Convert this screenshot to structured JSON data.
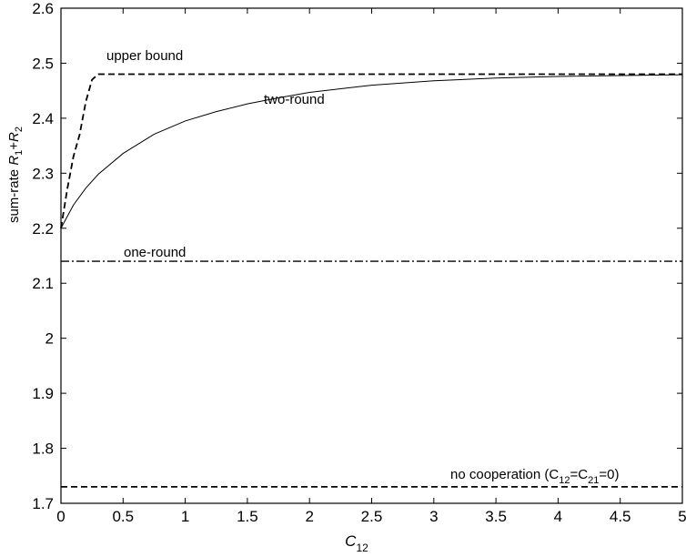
{
  "chart_data": {
    "type": "line",
    "xlabel": {
      "base": "C",
      "sub": "12"
    },
    "ylabel": {
      "prefix": "sum-rate ",
      "r1": "R",
      "r1_sub": "1",
      "plus": "+",
      "r2": "R",
      "r2_sub": "2"
    },
    "xlim": [
      0,
      5
    ],
    "ylim": [
      1.7,
      2.6
    ],
    "grid": false,
    "x_ticks": [
      "0",
      "0.5",
      "1",
      "1.5",
      "2",
      "2.5",
      "3",
      "3.5",
      "4",
      "4.5",
      "5"
    ],
    "y_ticks": [
      "1.7",
      "1.8",
      "1.9",
      "2",
      "2.1",
      "2.2",
      "2.3",
      "2.4",
      "2.5",
      "2.6"
    ],
    "series": [
      {
        "key": "upper",
        "style": "dashed",
        "x": [
          0,
          0.05,
          0.1,
          0.15,
          0.2,
          0.25,
          0.3,
          5
        ],
        "y": [
          2.2,
          2.27,
          2.33,
          2.37,
          2.43,
          2.47,
          2.48,
          2.48
        ]
      },
      {
        "key": "two",
        "style": "solid",
        "x": [
          0,
          0.1,
          0.2,
          0.3,
          0.5,
          0.75,
          1,
          1.25,
          1.5,
          1.75,
          2,
          2.5,
          3,
          3.5,
          4,
          5
        ],
        "y": [
          2.2,
          2.242,
          2.273,
          2.298,
          2.336,
          2.371,
          2.395,
          2.412,
          2.426,
          2.437,
          2.447,
          2.46,
          2.468,
          2.473,
          2.476,
          2.479
        ]
      },
      {
        "key": "one",
        "style": "dashdot",
        "x": [
          0,
          5
        ],
        "y": [
          2.14,
          2.14
        ]
      },
      {
        "key": "none",
        "style": "dashed",
        "x": [
          0,
          5
        ],
        "y": [
          1.73,
          1.73
        ]
      }
    ],
    "annotations": {
      "upper_bound": "upper bound",
      "two_round": "two-round",
      "one_round": "one-round",
      "no_coop_prefix": "no cooperation (C",
      "no_coop_sub1": "12",
      "no_coop_mid": "=C",
      "no_coop_sub2": "21",
      "no_coop_suffix": "=0)"
    }
  }
}
